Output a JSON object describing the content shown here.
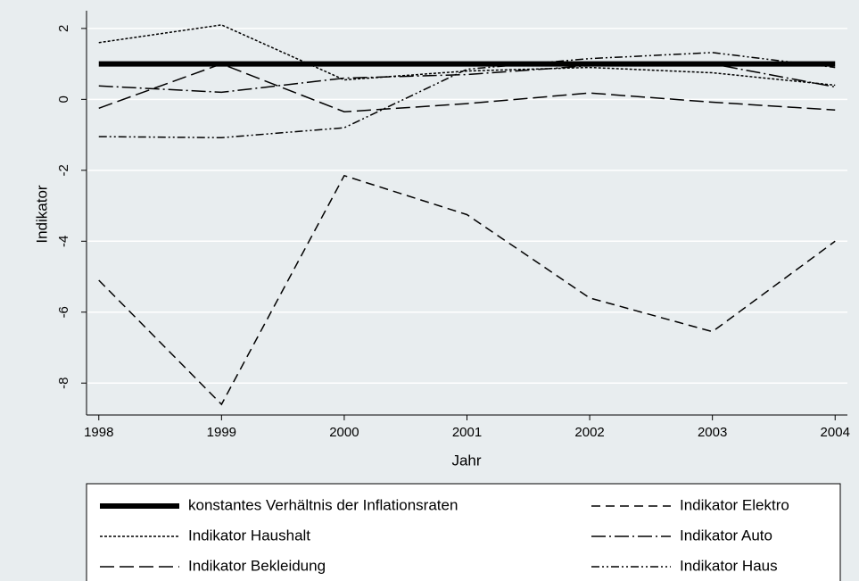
{
  "chart_data": {
    "type": "line",
    "x": [
      1998,
      1999,
      2000,
      2001,
      2002,
      2003,
      2004
    ],
    "xlabel": "Jahr",
    "ylabel": "Indikator",
    "xlim": [
      1997.9,
      2004.1
    ],
    "xticks": [
      1998,
      1999,
      2000,
      2001,
      2002,
      2003,
      2004
    ],
    "ylim": [
      -8.9,
      2.5
    ],
    "yticks": [
      2,
      0,
      -2,
      -4,
      -6,
      -8
    ],
    "grid": true,
    "series": [
      {
        "name": "konstantes Verhältnis der Inflationsraten",
        "color": "#000000",
        "values": [
          1,
          1,
          1,
          1,
          1,
          1,
          1
        ]
      },
      {
        "name": "Indikator Elektro",
        "color": "#000000",
        "values": [
          -5.1,
          -8.6,
          -2.15,
          -3.25,
          -5.6,
          -6.55,
          -4.0
        ]
      },
      {
        "name": "Indikator Haushalt",
        "color": "#000000",
        "values": [
          1.6,
          2.1,
          0.55,
          0.8,
          0.9,
          0.75,
          0.4
        ]
      },
      {
        "name": "Indikator Auto",
        "color": "#000000",
        "values": [
          0.38,
          0.2,
          0.6,
          0.7,
          0.95,
          1.0,
          0.35
        ]
      },
      {
        "name": "Indikator Bekleidung",
        "color": "#000000",
        "values": [
          -0.25,
          1.0,
          -0.35,
          -0.12,
          0.18,
          -0.08,
          -0.3
        ]
      },
      {
        "name": "Indikator Haus",
        "color": "#000000",
        "values": [
          -1.05,
          -1.08,
          -0.8,
          0.85,
          1.15,
          1.32,
          0.9
        ]
      }
    ]
  }
}
